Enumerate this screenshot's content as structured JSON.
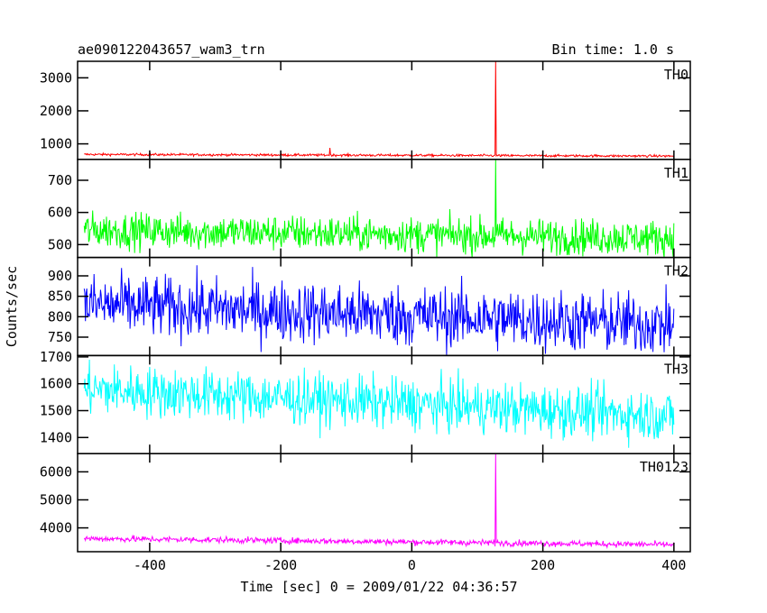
{
  "chart_data": {
    "type": "line",
    "title_left": "ae090122043657_wam3_trn",
    "title_right": "Bin time: 1.0 s",
    "xlabel": "Time [sec] 0 = 2009/01/22 04:36:57",
    "ylabel": "Counts/sec",
    "xlim": [
      -510,
      425
    ],
    "x_ticks": [
      -400,
      -200,
      0,
      200,
      400
    ],
    "x_range": [
      -500,
      400
    ],
    "bin_time": 1.0,
    "grid": false,
    "panels": [
      {
        "name": "TH0",
        "color": "#ff0000",
        "ylim": [
          530,
          3500
        ],
        "y_ticks": [
          1000,
          2000,
          3000
        ],
        "baseline_start": 680,
        "baseline_end": 630,
        "noise": 18,
        "features": [
          {
            "t": -125,
            "peak": 880
          },
          {
            "t": 128,
            "peak": 3500
          }
        ]
      },
      {
        "name": "TH1",
        "color": "#00ff00",
        "ylim": [
          460,
          765
        ],
        "y_ticks": [
          500,
          600,
          700
        ],
        "baseline_start": 545,
        "baseline_end": 520,
        "noise": 28,
        "features": [
          {
            "t": 128,
            "peak": 765
          }
        ]
      },
      {
        "name": "TH2",
        "color": "#0000ff",
        "ylim": [
          705,
          945
        ],
        "y_ticks": [
          750,
          800,
          850,
          900
        ],
        "baseline_start": 830,
        "baseline_end": 780,
        "noise": 38,
        "features": []
      },
      {
        "name": "TH3",
        "color": "#00ffff",
        "ylim": [
          1340,
          1705
        ],
        "y_ticks": [
          1400,
          1500,
          1600,
          1700
        ],
        "baseline_start": 1580,
        "baseline_end": 1480,
        "noise": 48,
        "features": []
      },
      {
        "name": "TH0123",
        "color": "#ff00ff",
        "ylim": [
          3150,
          6650
        ],
        "y_ticks": [
          4000,
          5000,
          6000
        ],
        "baseline_start": 3620,
        "baseline_end": 3400,
        "noise": 55,
        "features": [
          {
            "t": 128,
            "peak": 6650
          }
        ]
      }
    ]
  }
}
